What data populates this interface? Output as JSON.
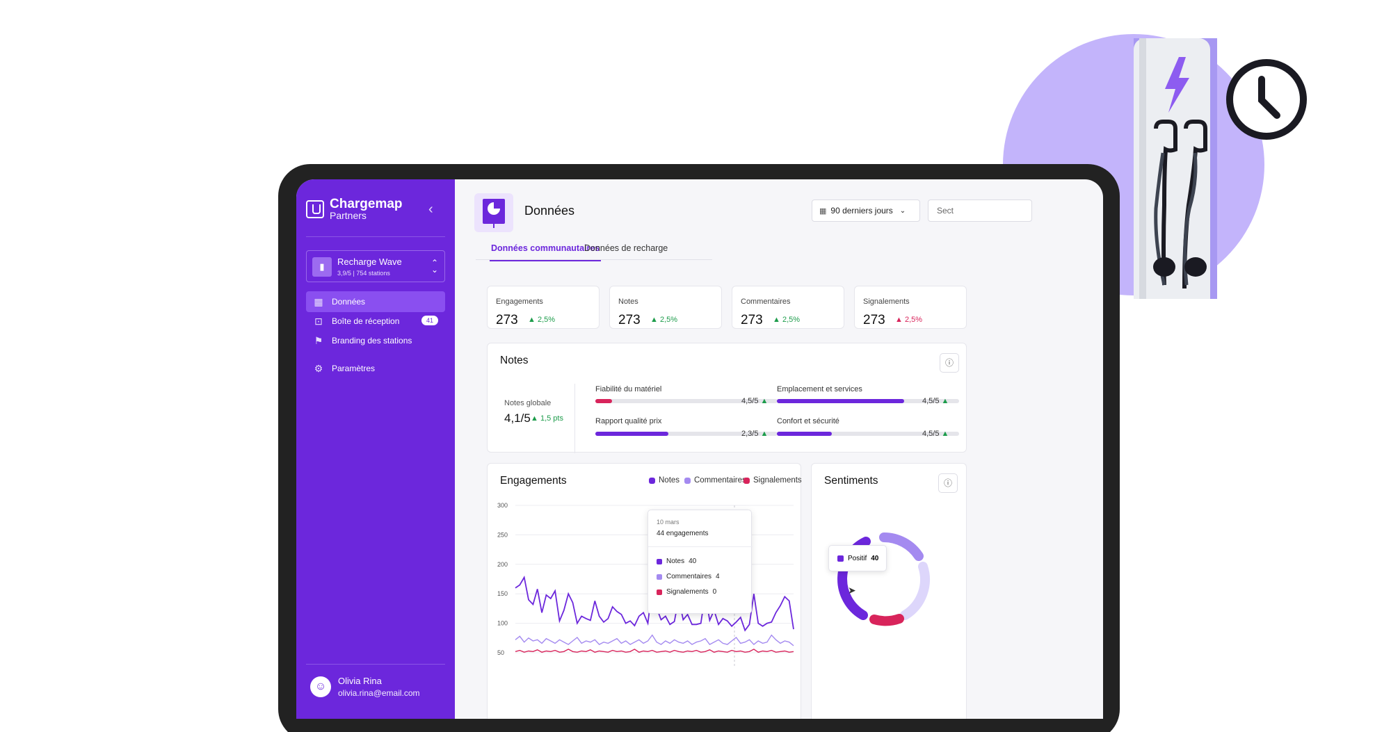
{
  "brand": {
    "name": "Chargemap",
    "sub": "Partners"
  },
  "org": {
    "name": "Recharge Wave",
    "sub": "3,9/5 | 754 stations"
  },
  "nav": [
    {
      "label": "Données",
      "icon": "chart-icon",
      "active": true
    },
    {
      "label": "Boîte de réception",
      "icon": "inbox-icon",
      "badge": "41"
    },
    {
      "label": "Branding des stations",
      "icon": "flag-icon"
    },
    {
      "label": "Paramètres",
      "icon": "gear-icon"
    }
  ],
  "user": {
    "name": "Olivia Rina",
    "email": "olivia.rina@email.com"
  },
  "page": {
    "title": "Données",
    "range": "90 derniers jours",
    "section": "Sect"
  },
  "tabs": [
    "Données communautaires",
    "Données de recharge"
  ],
  "stats": [
    {
      "label": "Engagements",
      "value": "273",
      "delta": "2,5%",
      "trend": "up-green"
    },
    {
      "label": "Notes",
      "value": "273",
      "delta": "2,5%",
      "trend": "up-green"
    },
    {
      "label": "Commentaires",
      "value": "273",
      "delta": "2,5%",
      "trend": "up-green"
    },
    {
      "label": "Signalements",
      "value": "273",
      "delta": "2,5%",
      "trend": "up-red"
    }
  ],
  "notes": {
    "title": "Notes",
    "global_label": "Notes globale",
    "global_value": "4,1/5",
    "global_delta": "1,5 pts",
    "metrics": [
      {
        "label": "Fiabilité du matériel",
        "score": "4,5/5",
        "fill": 0.09,
        "color": "#d8245b"
      },
      {
        "label": "Emplacement et services",
        "score": "4,5/5",
        "fill": 0.7,
        "color": "#6c27dc"
      },
      {
        "label": "Rapport qualité prix",
        "score": "2,3/5",
        "fill": 0.4,
        "color": "#6c27dc"
      },
      {
        "label": "Confort et sécurité",
        "score": "4,5/5",
        "fill": 0.3,
        "color": "#6c27dc"
      }
    ]
  },
  "engagements": {
    "title": "Engagements",
    "legend": [
      {
        "name": "Notes",
        "color": "#6c27dc"
      },
      {
        "name": "Commentaires",
        "color": "#a48af0"
      },
      {
        "name": "Signalements",
        "color": "#d8245b"
      }
    ],
    "tooltip": {
      "date": "10 mars",
      "total": "44 engagements",
      "rows": [
        {
          "name": "Notes",
          "value": "40",
          "color": "#6c27dc"
        },
        {
          "name": "Commentaires",
          "value": "4",
          "color": "#a48af0"
        },
        {
          "name": "Signalements",
          "value": "0",
          "color": "#d8245b"
        }
      ]
    }
  },
  "chart_data": {
    "type": "line",
    "yticks": [
      300,
      250,
      200,
      150,
      100,
      50
    ],
    "ylim": [
      50,
      300
    ],
    "series": [
      {
        "name": "Notes",
        "color": "#6c27dc",
        "values": [
          160,
          165,
          178,
          140,
          132,
          158,
          118,
          148,
          142,
          155,
          104,
          122,
          150,
          135,
          100,
          112,
          108,
          105,
          138,
          112,
          102,
          108,
          128,
          120,
          115,
          100,
          104,
          96,
          112,
          118,
          100,
          160,
          126,
          106,
          112,
          98,
          103,
          142,
          106,
          115,
          98,
          98,
          100,
          150,
          105,
          122,
          98,
          108,
          104,
          95,
          102,
          110,
          88,
          98,
          150,
          100,
          95,
          100,
          102,
          118,
          130,
          145,
          138,
          90
        ]
      },
      {
        "name": "Commentaires",
        "color": "#a48af0",
        "values": [
          72,
          78,
          68,
          75,
          70,
          72,
          66,
          74,
          70,
          66,
          72,
          68,
          64,
          70,
          76,
          66,
          70,
          68,
          72,
          64,
          68,
          66,
          70,
          74,
          66,
          70,
          64,
          68,
          72,
          66,
          70,
          80,
          68,
          64,
          70,
          66,
          72,
          68,
          66,
          70,
          64,
          68,
          70,
          74,
          64,
          68,
          72,
          66,
          64,
          70,
          76,
          66,
          68,
          72,
          64,
          70,
          66,
          68,
          80,
          72,
          66,
          70,
          68,
          62
        ]
      },
      {
        "name": "Signalements",
        "color": "#d8245b",
        "values": [
          52,
          54,
          51,
          53,
          52,
          55,
          51,
          53,
          52,
          54,
          51,
          52,
          56,
          52,
          51,
          53,
          52,
          55,
          51,
          53,
          52,
          51,
          54,
          52,
          53,
          51,
          52,
          56,
          51,
          53,
          52,
          54,
          51,
          52,
          53,
          51,
          54,
          52,
          51,
          53,
          52,
          54,
          51,
          52,
          55,
          51,
          53,
          52,
          51,
          54,
          52,
          53,
          51,
          52,
          56,
          51,
          53,
          52,
          54,
          51,
          52,
          53,
          51,
          52
        ]
      }
    ]
  },
  "sentiments": {
    "title": "Sentiments",
    "tooltip_label": "Positif",
    "tooltip_value": "40"
  }
}
